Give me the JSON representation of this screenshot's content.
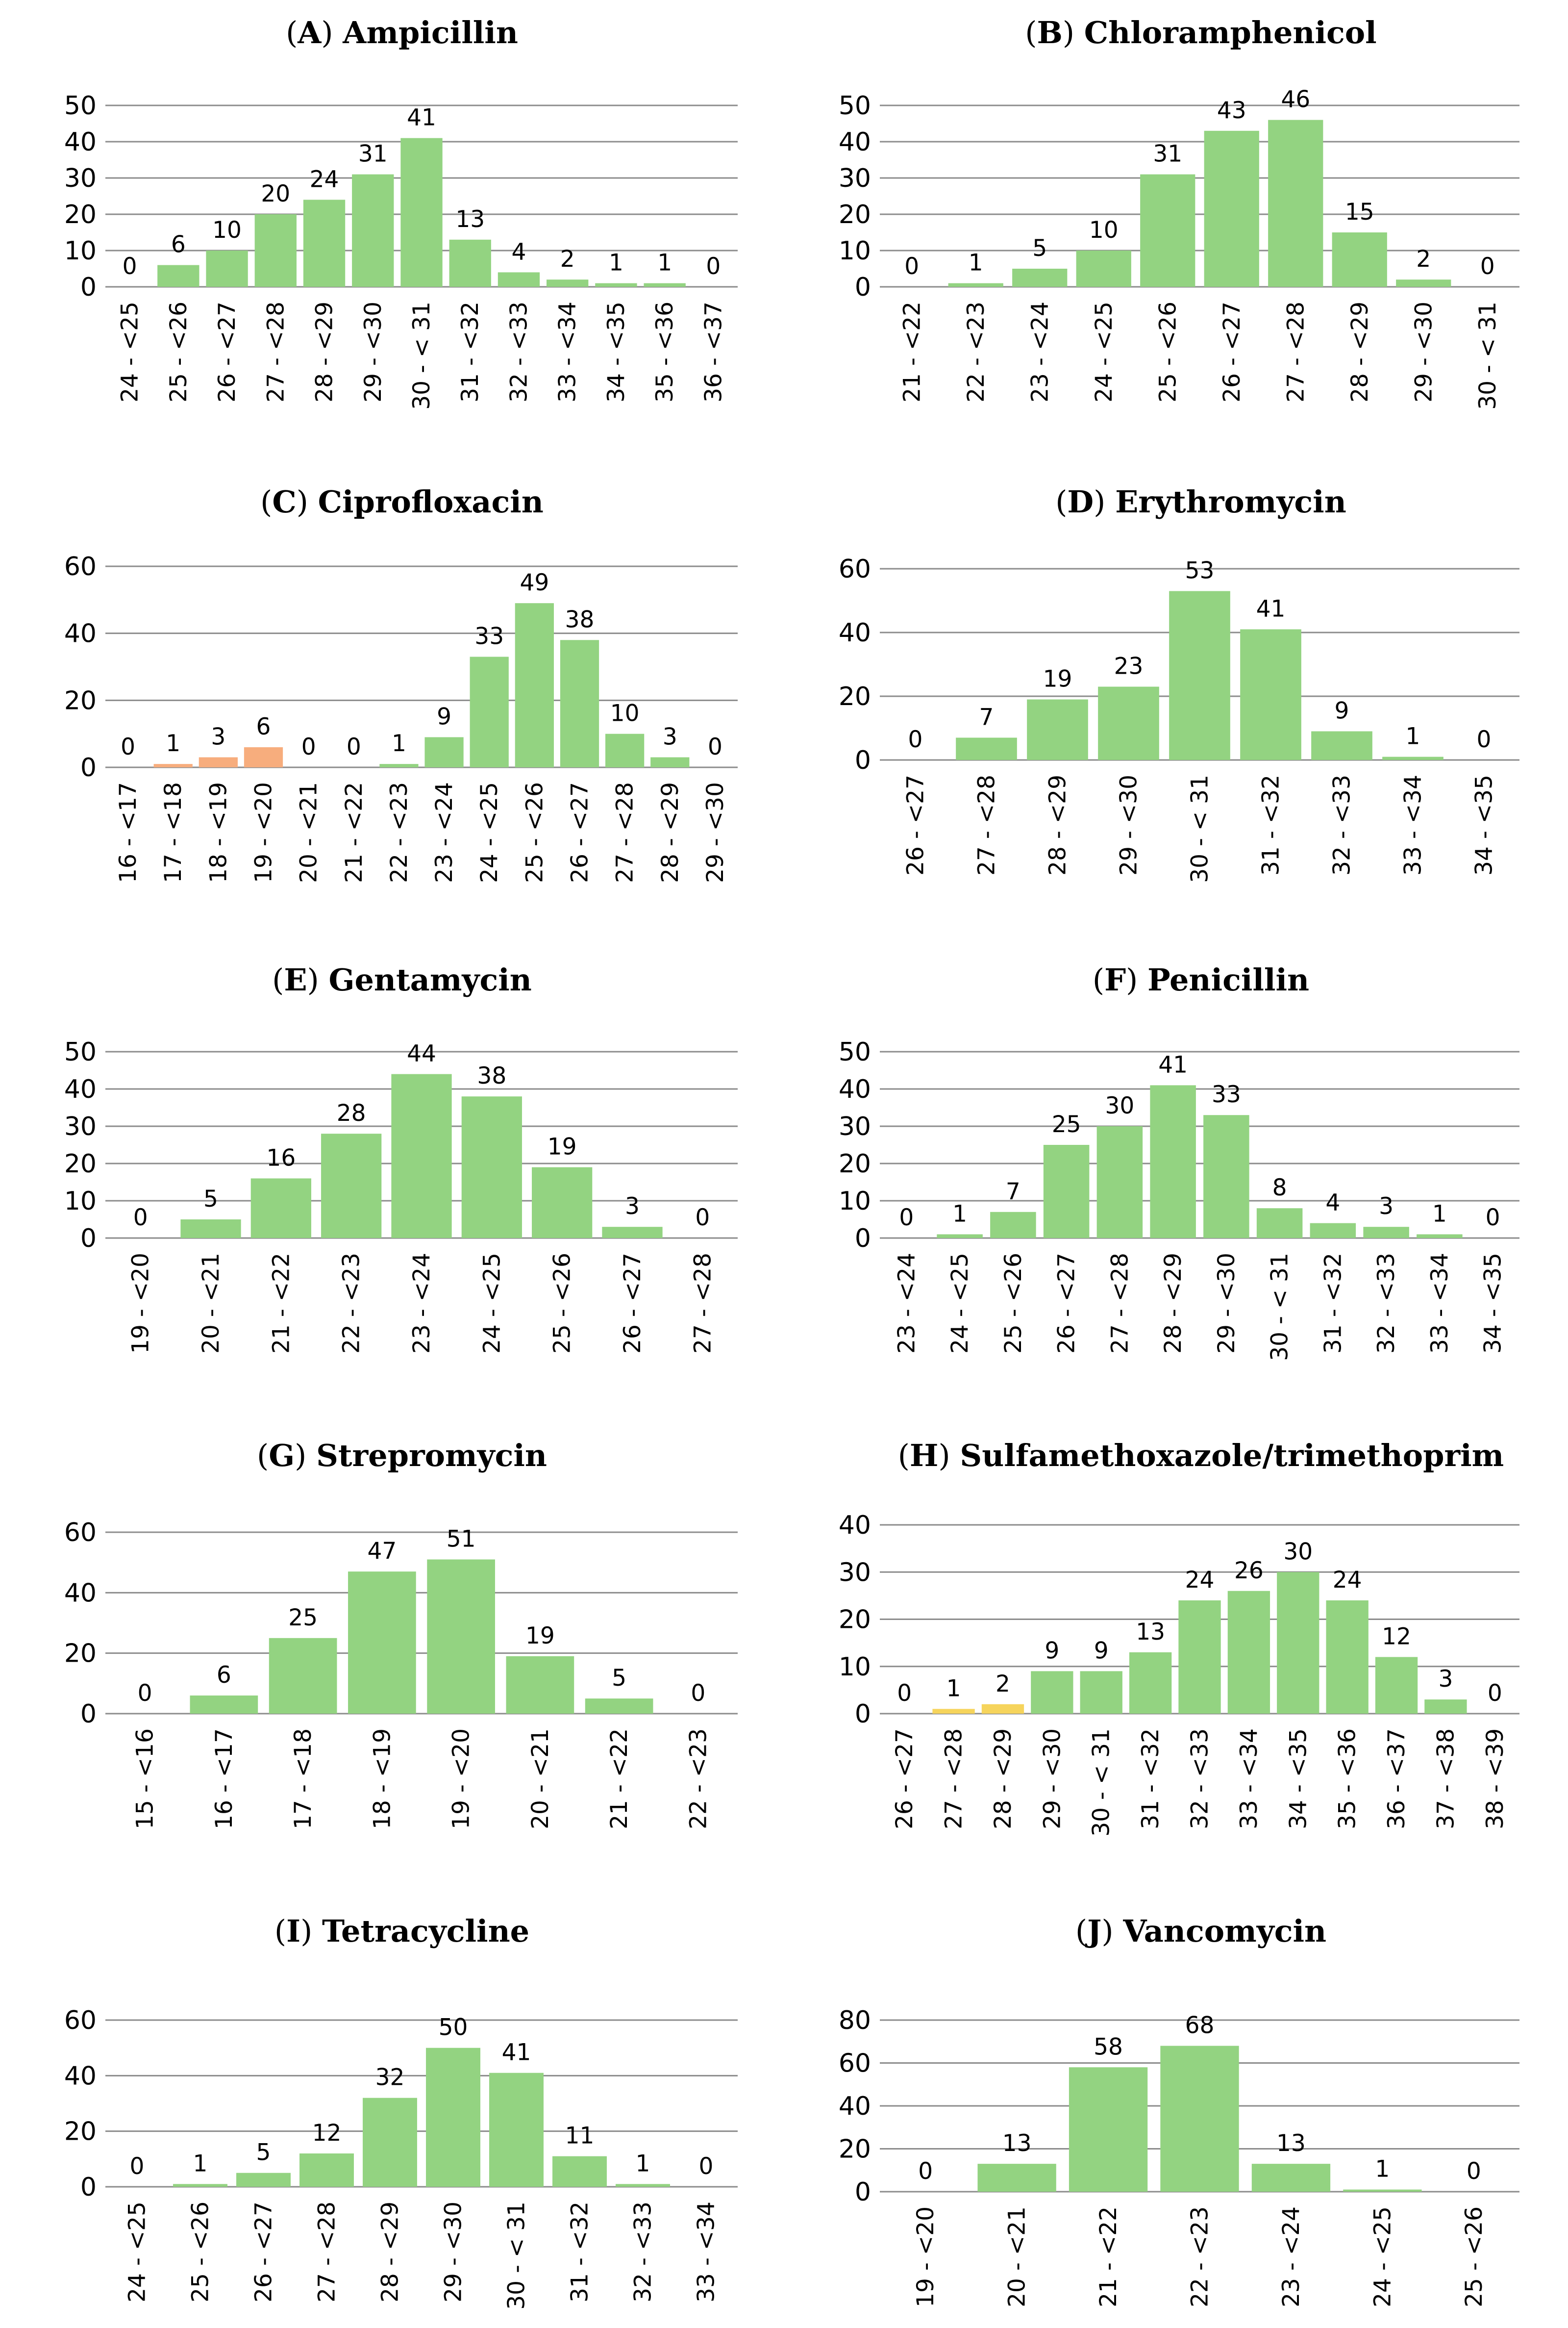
{
  "colors": {
    "green": "#93d381",
    "orange": "#f7ad7d",
    "yellow": "#f6d45c",
    "grid": "#8c8c8c"
  },
  "chart_data": [
    {
      "type": "bar",
      "letter": "A",
      "title": "Ampicillin",
      "categories": [
        "24 - <25",
        "25 - <26",
        "26 - <27",
        "27 - <28",
        "28 - <29",
        "29 - <30",
        "30 - < 31",
        "31 - <32",
        "32 - <33",
        "33 - <34",
        "34 - <35",
        "35 - <36",
        "36 - <37"
      ],
      "values": [
        0,
        6,
        10,
        20,
        24,
        31,
        41,
        13,
        4,
        2,
        1,
        1,
        0
      ],
      "bar_colors": [],
      "ylim": [
        0,
        50
      ],
      "yticks": [
        0,
        10,
        20,
        30,
        40,
        50
      ]
    },
    {
      "type": "bar",
      "letter": "B",
      "title": "Chloramphenicol",
      "categories": [
        "21 - <22",
        "22 - <23",
        "23 - <24",
        "24 - <25",
        "25 - <26",
        "26 - <27",
        "27 - <28",
        "28 - <29",
        "29 - <30",
        "30 - < 31"
      ],
      "values": [
        0,
        1,
        5,
        10,
        31,
        43,
        46,
        15,
        2,
        0
      ],
      "bar_colors": [],
      "ylim": [
        0,
        50
      ],
      "yticks": [
        0,
        10,
        20,
        30,
        40,
        50
      ]
    },
    {
      "type": "bar",
      "letter": "C",
      "title": "Ciprofloxacin",
      "categories": [
        "16 - <17",
        "17 - <18",
        "18 - <19",
        "19 - <20",
        "20 - <21",
        "21 - <22",
        "22 - <23",
        "23 - <24",
        "24 - <25",
        "25 - <26",
        "26 - <27",
        "27 - <28",
        "28 - <29",
        "29 - <30"
      ],
      "values": [
        0,
        1,
        3,
        6,
        0,
        0,
        1,
        9,
        33,
        49,
        38,
        10,
        3,
        0
      ],
      "bar_colors": [
        "orange",
        "orange",
        "orange",
        "orange"
      ],
      "ylim": [
        0,
        60
      ],
      "yticks": [
        0,
        20,
        40,
        60
      ]
    },
    {
      "type": "bar",
      "letter": "D",
      "title": "Erythromycin",
      "categories": [
        "26 - <27",
        "27 - <28",
        "28 - <29",
        "29 - <30",
        "30 - < 31",
        "31 - <32",
        "32 - <33",
        "33 - <34",
        "34 - <35"
      ],
      "values": [
        0,
        7,
        19,
        23,
        53,
        41,
        9,
        1,
        0
      ],
      "bar_colors": [],
      "ylim": [
        0,
        60
      ],
      "yticks": [
        0,
        20,
        40,
        60
      ]
    },
    {
      "type": "bar",
      "letter": "E",
      "title": "Gentamycin",
      "categories": [
        "19 - <20",
        "20 - <21",
        "21 - <22",
        "22 - <23",
        "23 - <24",
        "24 - <25",
        "25 - <26",
        "26 - <27",
        "27 - <28"
      ],
      "values": [
        0,
        5,
        16,
        28,
        44,
        38,
        19,
        3,
        0
      ],
      "bar_colors": [],
      "ylim": [
        0,
        50
      ],
      "yticks": [
        0,
        10,
        20,
        30,
        40,
        50
      ]
    },
    {
      "type": "bar",
      "letter": "F",
      "title": "Penicillin",
      "categories": [
        "23 - <24",
        "24 - <25",
        "25 - <26",
        "26 - <27",
        "27 - <28",
        "28 - <29",
        "29 - <30",
        "30 - < 31",
        "31 - <32",
        "32 - <33",
        "33 - <34",
        "34 - <35"
      ],
      "values": [
        0,
        1,
        7,
        25,
        30,
        41,
        33,
        8,
        4,
        3,
        1,
        0
      ],
      "bar_colors": [],
      "ylim": [
        0,
        50
      ],
      "yticks": [
        0,
        10,
        20,
        30,
        40,
        50
      ]
    },
    {
      "type": "bar",
      "letter": "G",
      "title": "Strepromycin",
      "categories": [
        "15 - <16",
        "16 - <17",
        "17 - <18",
        "18 - <19",
        "19 - <20",
        "20 - <21",
        "21 - <22",
        "22 - <23"
      ],
      "values": [
        0,
        6,
        25,
        47,
        51,
        19,
        5,
        0
      ],
      "bar_colors": [],
      "ylim": [
        0,
        60
      ],
      "yticks": [
        0,
        20,
        40,
        60
      ]
    },
    {
      "type": "bar",
      "letter": "H",
      "title": "Sulfamethoxazole/trimethoprim",
      "categories": [
        "26 - <27",
        "27 - <28",
        "28 - <29",
        "29 - <30",
        "30 - < 31",
        "31 - <32",
        "32 - <33",
        "33 - <34",
        "34 - <35",
        "35 - <36",
        "36 - <37",
        "37 - <38",
        "38 - <39"
      ],
      "values": [
        0,
        1,
        2,
        9,
        9,
        13,
        24,
        26,
        30,
        24,
        12,
        3,
        0
      ],
      "bar_colors": [
        "yellow",
        "yellow",
        "yellow"
      ],
      "ylim": [
        0,
        40
      ],
      "yticks": [
        0,
        10,
        20,
        30,
        40
      ]
    },
    {
      "type": "bar",
      "letter": "I",
      "title": "Tetracycline",
      "categories": [
        "24 - <25",
        "25 - <26",
        "26 - <27",
        "27 - <28",
        "28 - <29",
        "29 - <30",
        "30 - < 31",
        "31 - <32",
        "32 - <33",
        "33 - <34"
      ],
      "values": [
        0,
        1,
        5,
        12,
        32,
        50,
        41,
        11,
        1,
        0
      ],
      "bar_colors": [],
      "ylim": [
        0,
        60
      ],
      "yticks": [
        0,
        20,
        40,
        60
      ]
    },
    {
      "type": "bar",
      "letter": "J",
      "title": "Vancomycin",
      "categories": [
        "19 - <20",
        "20 - <21",
        "21 - <22",
        "22 - <23",
        "23 - <24",
        "24 - <25",
        "25 - <26"
      ],
      "values": [
        0,
        13,
        58,
        68,
        13,
        1,
        0
      ],
      "bar_colors": [],
      "ylim": [
        0,
        80
      ],
      "yticks": [
        0,
        20,
        40,
        60,
        80
      ]
    }
  ]
}
